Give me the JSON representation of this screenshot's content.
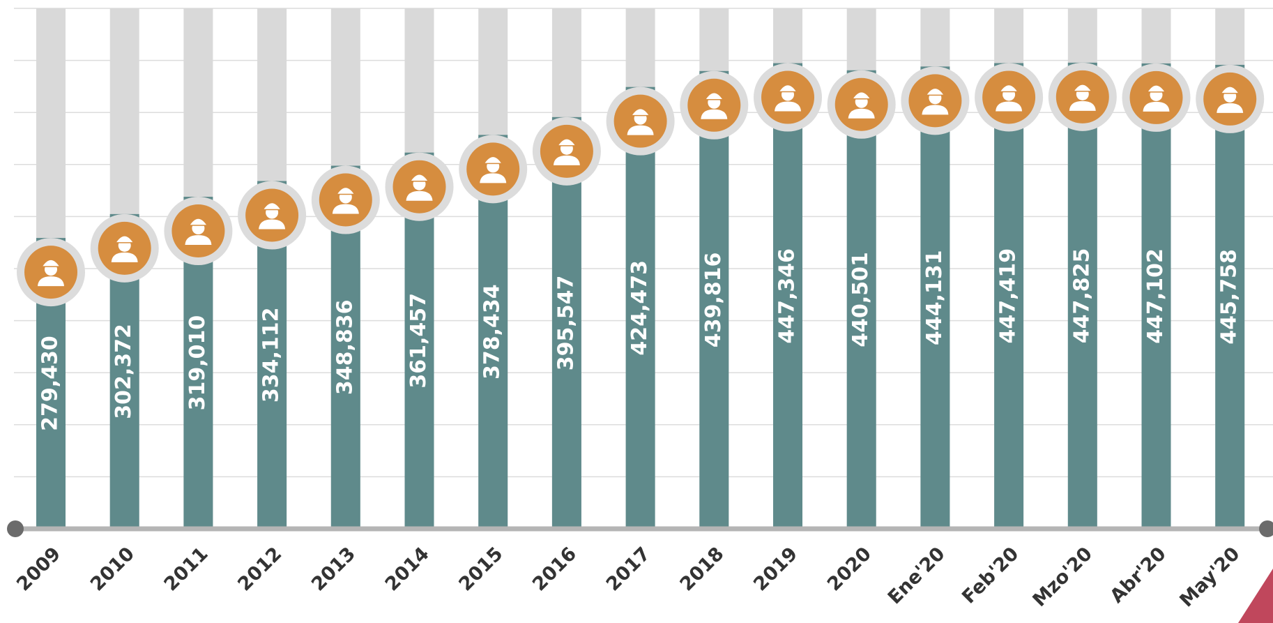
{
  "chart_data": {
    "type": "bar",
    "categories": [
      "2009",
      "2010",
      "2011",
      "2012",
      "2013",
      "2014",
      "2015",
      "2016",
      "2017",
      "2018",
      "2019",
      "2020",
      "Ene'20",
      "Feb'20",
      "Mzo'20",
      "Abr'20",
      "May'20"
    ],
    "values": [
      279430,
      302372,
      319010,
      334112,
      348836,
      361457,
      378434,
      395547,
      424473,
      439816,
      447346,
      440501,
      444131,
      447419,
      447825,
      447102,
      445758
    ],
    "value_labels": [
      "279,430",
      "302,372",
      "319,010",
      "334,112",
      "348,836",
      "361,457",
      "378,434",
      "395,547",
      "424,473",
      "439,816",
      "447,346",
      "440,501",
      "444,131",
      "447,419",
      "447,825",
      "447,102",
      "445,758"
    ],
    "color": "#5f8a8b",
    "ylim": [
      0,
      500000
    ],
    "yticks": [
      0,
      50000,
      100000,
      150000,
      200000,
      250000,
      300000,
      350000,
      400000,
      450000,
      500000
    ],
    "grid": true
  }
}
